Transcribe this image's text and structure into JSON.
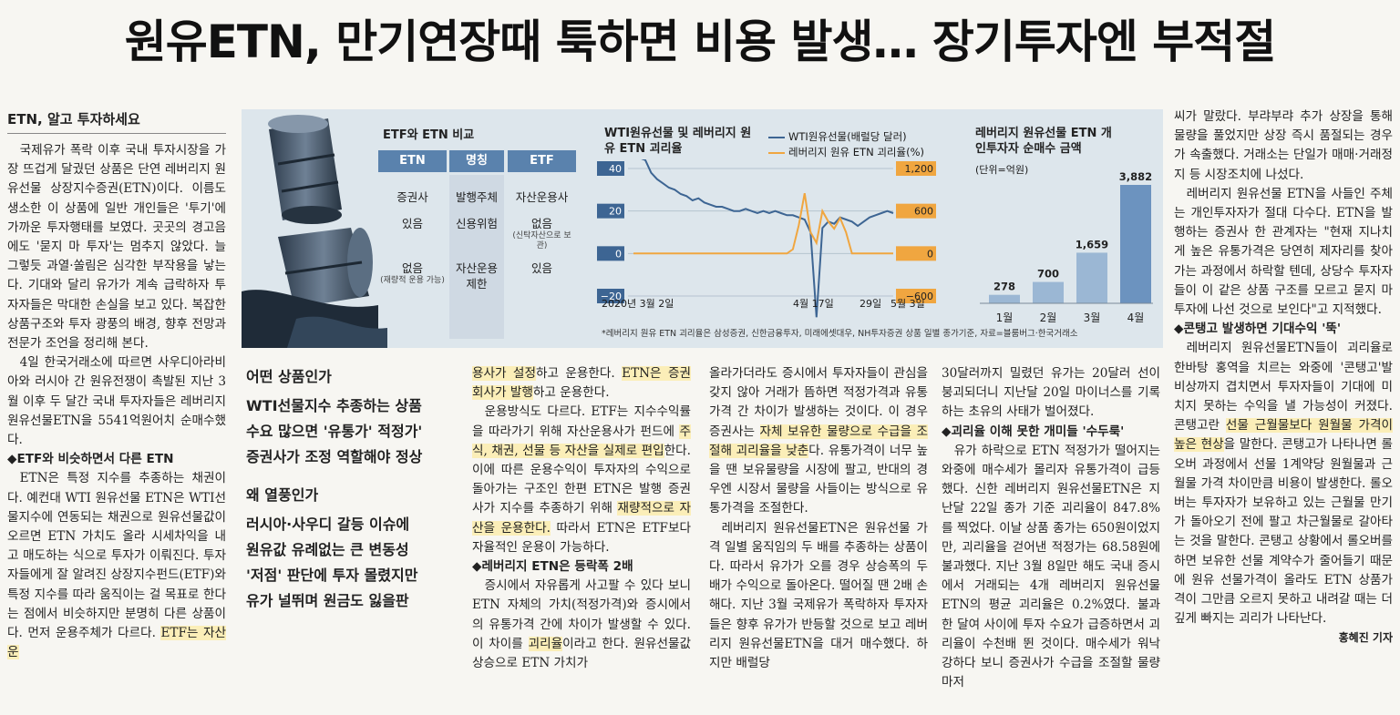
{
  "headline": "원유ETN, 만기연장때 툭하면 비용 발생… 장기투자엔 부적절",
  "col1": {
    "kicker": "ETN, 알고 투자하세요",
    "p1": "국제유가 폭락 이후 국내 투자시장을 가장 뜨겁게 달궜던 상품은 단연 레버리지 원유선물 상장지수증권(ETN)이다. 이름도 생소한 이 상품에 일반 개인들은 '투기'에 가까운 투자행태를 보였다. 곳곳의 경고음에도 '묻지 마 투자'는 멈추지 않았다. 늘 그렇듯 과열·쏠림은 심각한 부작용을 낳는다. 기대와 달리 유가가 계속 급락하자 투자자들은 막대한 손실을 보고 있다. 복잡한 상품구조와 투자 광풍의 배경, 향후 전망과 전문가 조언을 정리해 본다.",
    "p2": "4일 한국거래소에 따르면 사우디아라비아와 러시아 간 원유전쟁이 촉발된 지난 3월 이후 두 달간 국내 투자자들은 레버리지 원유선물ETN을 5541억원어치 순매수했다.",
    "h1": "◆ETF와 비슷하면서 다른 ETN",
    "p3a": "ETN은 특정 지수를 추종하는 채권이다. 예컨대 WTI 원유선물 ETN은 WTI선물지수에 연동되는 채권으로 원유선물값이 오르면 ETN 가치도 올라 시세차익을 내고 매도하는 식으로 투자가 이뤄진다. 투자자들에게 잘 알려진 상장지수펀드(ETF)와 특정 지수를 따라 움직이는 걸 목표로 한다는 점에서 비슷하지만 분명히 다른 상품이다. 먼저 운용주체가 다르다. ",
    "p3hl": "ETF는 자산운"
  },
  "infographic": {
    "table": {
      "title": "ETF와 ETN 비교",
      "headers": [
        "ETN",
        "명칭",
        "ETF"
      ],
      "rows": [
        {
          "etn": "증권사",
          "etn_note": "",
          "label": "발행주체",
          "etf": "자산운용사",
          "etf_note": ""
        },
        {
          "etn": "있음",
          "etn_note": "",
          "label": "신용위험",
          "etf": "없음",
          "etf_note": "(신탁자산으로 보관)"
        },
        {
          "etn": "없음",
          "etn_note": "(재량적 운용 가능)",
          "label": "자산운용 제한",
          "etf": "있음",
          "etf_note": ""
        }
      ]
    },
    "line_chart": {
      "title": "WTI원유선물 및 레버리지 원유 ETN 괴리율",
      "legend": [
        "WTI원유선물(배럴당 달러)",
        "레버리지 원유 ETN 괴리율(%)"
      ],
      "left_ticks": [
        "40",
        "20",
        "0",
        "−20"
      ],
      "right_ticks": [
        "1,200",
        "600",
        "0",
        "−600"
      ],
      "x_labels": [
        "2020년 3월 2일",
        "4월 17일",
        "29일",
        "5월 3일"
      ],
      "colors": {
        "wti": "#3d6593",
        "etn": "#f0a640"
      }
    },
    "bar_chart": {
      "title": "레버리지 원유선물 ETN 개인투자자 순매수 금액",
      "unit": "(단위=억원)",
      "color": "#9bb7d4",
      "highlight_color": "#6c93bf"
    },
    "note": "*레버리지 원유 ETN 괴리율은 삼성증권, 신한금융투자, 미래에셋대우, NH투자증권 상품 일별 종가기준, 자료=블룸버그·한국거래소"
  },
  "chart_data": [
    {
      "type": "line",
      "title": "WTI원유선물 및 레버리지 원유 ETN 괴리율",
      "x": [
        "2020-03-02",
        "2020-04-17",
        "2020-04-29",
        "2020-05-03"
      ],
      "series": [
        {
          "name": "WTI원유선물(배럴당 달러)",
          "axis": "left",
          "values_approx": [
            46,
            18,
            17,
            19
          ]
        },
        {
          "name": "레버리지 원유 ETN 괴리율(%)",
          "axis": "right",
          "values_approx": [
            0,
            0,
            500,
            700
          ]
        }
      ],
      "ylim_left": [
        -20,
        40
      ],
      "ylim_right": [
        -600,
        1200
      ]
    },
    {
      "type": "bar",
      "title": "레버리지 원유선물 ETN 개인투자자 순매수 금액",
      "unit": "(단위=억원)",
      "categories": [
        "1월",
        "2월",
        "3월",
        "4월"
      ],
      "values": [
        278,
        700,
        1659,
        3882
      ],
      "labels": [
        "278",
        "700",
        "1,659",
        "3,882"
      ]
    }
  ],
  "col2": {
    "sub1_title": "어떤 상품인가",
    "sub1_lines": [
      "WTI선물지수 추종하는 상품",
      "수요 많으면 '유통가' 적정가'",
      "증권사가 조정 역할해야 정상"
    ],
    "sub2_title": "왜 열풍인가",
    "sub2_lines": [
      "러시아·사우디 갈등 이슈에",
      "원유값 유례없는 큰 변동성",
      "'저점' 판단에 투자 몰렸지만",
      "유가 널뛰며 원금도 잃을판"
    ]
  },
  "col3": {
    "p1_hl1": "용사가 설정",
    "p1_a": "하고 운용한다. ",
    "p1_hl2": "ETN은 증권회사가 발행",
    "p1_b": "하고 운용한다.",
    "p2_a": "운용방식도 다르다. ETF는 지수수익률을 따라가기 위해 자산운용사가 펀드에 ",
    "p2_hl": "주식, 채권, 선물 등 자산을 실제로 편입",
    "p2_b": "한다. 이에 따른 운용수익이 투자자의 수익으로 돌아가는 구조인 한편 ETN은 발행 증권사가 지수를 추종하기 위해 ",
    "p2_hl2": "재량적으로 자산을 운용한다.",
    "p2_c": " 따라서 ETN은 ETF보다 자율적인 운용이 가능하다.",
    "h1": "◆레버리지 ETN은 등락폭 2배",
    "p3_a": "증시에서 자유롭게 사고팔 수 있다 보니 ETN 자체의 가치(적정가격)와 증시에서의 유통가격 간에 차이가 발생할 수 있다. 이 차이를 ",
    "p3_hl": "괴리율",
    "p3_b": "이라고 한다. 원유선물값 상승으로 ETN 가치가"
  },
  "col4": {
    "p1_a": "올라가더라도 증시에서 투자자들이 관심을 갖지 않아 거래가 뜸하면 적정가격과 유통가격 간 차이가 발생하는 것이다. 이 경우 증권사는 ",
    "p1_hl": "자체 보유한 물량으로 수급을 조절해 괴리율을 낮춘",
    "p1_b": "다. 유통가격이 너무 높을 땐 보유물량을 시장에 팔고, 반대의 경우엔 시장서 물량을 사들이는 방식으로 유통가격을 조절한다.",
    "p2": "레버리지 원유선물ETN은 원유선물 가격 일별 움직임의 두 배를 추종하는 상품이다. 따라서 유가가 오를 경우 상승폭의 두 배가 수익으로 돌아온다. 떨어질 땐 2배 손해다. 지난 3월 국제유가 폭락하자 투자자들은 향후 유가가 반등할 것으로 보고 레버리지 원유선물ETN을 대거 매수했다. 하지만 배럴당"
  },
  "col5": {
    "p1": "30달러까지 밀렸던 유가는 20달러 선이 붕괴되더니 지난달 20일 마이너스를 기록하는 초유의 사태가 벌어졌다.",
    "h1": "◆괴리율 이해 못한 개미들 '수두룩'",
    "p2": "유가 하락으로 ETN 적정가가 떨어지는 와중에 매수세가 몰리자 유통가격이 급등했다. 신한 레버리지 원유선물ETN은 지난달 22일 종가 기준 괴리율이 847.8%를 찍었다. 이날 상품 종가는 650원이었지만, 괴리율을 걷어낸 적정가는 68.58원에 불과했다. 지난 3월 8일만 해도 국내 증시에서 거래되는 4개 레버리지 원유선물 ETN의 평균 괴리율은 0.2%였다. 불과 한 달여 사이에 투자 수요가 급증하면서 괴리율이 수천배 뛴 것이다. 매수세가 워낙 강하다 보니 증권사가 수급을 조절할 물량마저"
  },
  "col6": {
    "p1": "씨가 말랐다. 부랴부랴 추가 상장을 통해 물량을 풀었지만 상장 즉시 품절되는 경우가 속출했다. 거래소는 단일가 매매·거래정지 등 시장조치에 나섰다.",
    "p2": "레버리지 원유선물 ETN을 사들인 주체는 개인투자자가 절대 다수다. ETN을 발행하는 증권사 한 관계자는 \"현재 지나치게 높은 유통가격은 당연히 제자리를 찾아가는 과정에서 하락할 텐데, 상당수 투자자들이 이 같은 상품 구조를 모르고 묻지 마 투자에 나선 것으로 보인다\"고 지적했다.",
    "h1": "◆콘탱고 발생하면 기대수익 '뚝'",
    "p3_a": "레버리지 원유선물ETN들이 괴리율로 한바탕 홍역을 치르는 와중에 '콘탱고'발 비상까지 겹치면서 투자자들이 기대에 미치지 못하는 수익을 낼 가능성이 커졌다. 콘탱고란 ",
    "p3_hl": "선물 근월물보다 원월물 가격이 높은 현상",
    "p3_b": "을 말한다. 콘탱고가 나타나면 롤오버 과정에서 선물 1계약당 원월물과 근월물 가격 차이만큼 비용이 발생한다. 롤오버는 투자자가 보유하고 있는 근월물 만기가 돌아오기 전에 팔고 차근월물로 갈아타는 것을 말한다. 콘탱고 상황에서 롤오버를 하면 보유한 선물 계약수가 줄어들기 때문에 원유 선물가격이 올라도 ETN 상품가격이 그만큼 오르지 못하고 내려갈 때는 더 깊게 빠지는 괴리가 나타난다.",
    "byline": "홍혜진 기자"
  }
}
